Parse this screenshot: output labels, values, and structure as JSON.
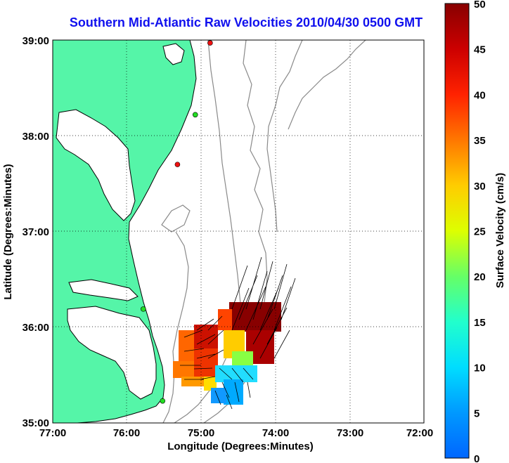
{
  "title": "Southern Mid-Atlantic Raw Velocities 2010/04/30 0500 GMT",
  "x_axis": {
    "label": "Longitude (Degrees:Minutes)",
    "ticks": [
      "77:00",
      "76:00",
      "75:00",
      "74:00",
      "73:00",
      "72:00"
    ],
    "range": [
      -77,
      -72
    ]
  },
  "y_axis": {
    "label": "Latitude (Degrees:Minutes)",
    "ticks": [
      "39:00",
      "38:00",
      "37:00",
      "36:00",
      "35:00"
    ],
    "range": [
      35,
      39
    ]
  },
  "colorbar": {
    "label": "Surface Velocity (cm/s)",
    "ticks": [
      "50",
      "45",
      "40",
      "35",
      "30",
      "25",
      "20",
      "15",
      "10",
      "5",
      "0"
    ],
    "range": [
      0,
      50
    ]
  },
  "colors": {
    "land": "#55f5a8",
    "coast": "#000000",
    "bathymetry": "#8a8a8a",
    "grid": "#000000",
    "title": "#1010ee"
  },
  "stations": [
    {
      "lon": -74.88,
      "lat": 38.97,
      "color": "#ee1111"
    },
    {
      "lon": -75.08,
      "lat": 38.22,
      "color": "#22dd22"
    },
    {
      "lon": -75.32,
      "lat": 37.7,
      "color": "#ee1111"
    },
    {
      "lon": -75.78,
      "lat": 36.19,
      "color": "#22dd22"
    },
    {
      "lon": -75.52,
      "lat": 35.23,
      "color": "#22dd22"
    }
  ]
}
